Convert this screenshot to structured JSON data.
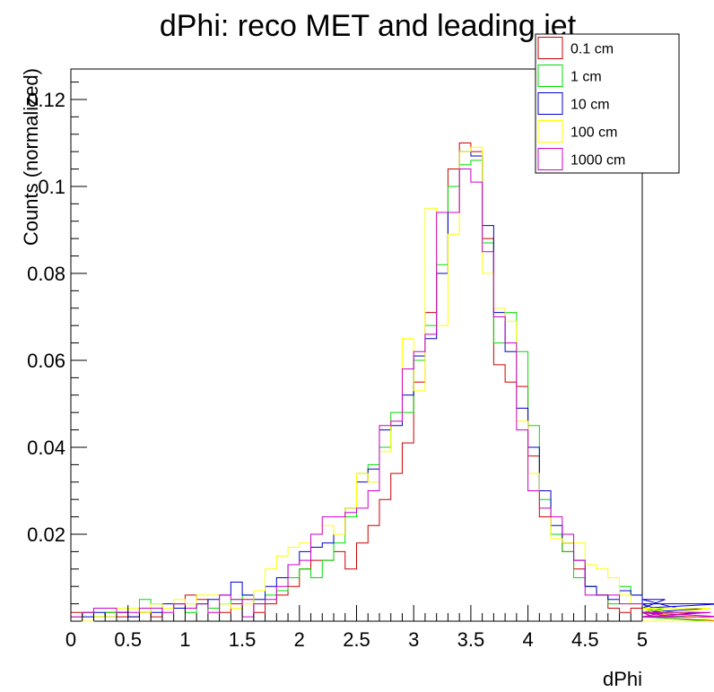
{
  "chart_data": {
    "type": "line",
    "title": "dPhi: reco MET and leading jet",
    "xlabel": "dPhi",
    "ylabel": "Counts (normalized)",
    "xlim": [
      0,
      5
    ],
    "ylim": [
      0,
      0.127
    ],
    "x_ticks": [
      "0",
      "0.5",
      "1",
      "1.5",
      "2",
      "2.5",
      "3",
      "3.5",
      "4",
      "4.5",
      "5"
    ],
    "y_ticks": [
      "0.02",
      "0.04",
      "0.06",
      "0.08",
      "0.1",
      "0.12"
    ],
    "y_tick_values": [
      0.02,
      0.04,
      0.06,
      0.08,
      0.1,
      0.12
    ],
    "bin_edges_start": 0,
    "bin_width": 0.1,
    "legend_position": "top-right",
    "grid": false,
    "series": [
      {
        "name": "0.1 cm",
        "color": "#cc0000",
        "values": [
          0.002,
          0.002,
          0.001,
          0.002,
          0.001,
          0.001,
          0.002,
          0.001,
          0.003,
          0.004,
          0.006,
          0.005,
          0.003,
          0.002,
          0.004,
          0.005,
          0.002,
          0.004,
          0.006,
          0.008,
          0.012,
          0.014,
          0.014,
          0.016,
          0.012,
          0.018,
          0.022,
          0.028,
          0.034,
          0.041,
          0.055,
          0.071,
          0.08,
          0.104,
          0.11,
          0.108,
          0.088,
          0.059,
          0.055,
          0.054,
          0.038,
          0.024,
          0.02,
          0.016,
          0.012,
          0.008,
          0.006,
          0.003,
          0.002,
          0.003,
          0.002,
          0.001,
          0.001,
          0.002,
          0.001,
          0.001,
          0.001,
          0.0
        ]
      },
      {
        "name": "1 cm",
        "color": "#00dd00",
        "values": [
          0.001,
          0.002,
          0.001,
          0.002,
          0.002,
          0.003,
          0.005,
          0.004,
          0.003,
          0.003,
          0.002,
          0.004,
          0.003,
          0.004,
          0.005,
          0.006,
          0.004,
          0.006,
          0.007,
          0.01,
          0.012,
          0.01,
          0.014,
          0.018,
          0.024,
          0.034,
          0.036,
          0.04,
          0.048,
          0.048,
          0.06,
          0.068,
          0.082,
          0.1,
          0.105,
          0.106,
          0.087,
          0.064,
          0.071,
          0.062,
          0.045,
          0.028,
          0.02,
          0.016,
          0.01,
          0.008,
          0.006,
          0.004,
          0.008,
          0.006,
          0.004,
          0.002,
          0.003,
          0.002,
          0.001,
          0.001,
          0.0,
          0.0
        ]
      },
      {
        "name": "10 cm",
        "color": "#0000cc",
        "values": [
          0.001,
          0.001,
          0.002,
          0.001,
          0.002,
          0.001,
          0.003,
          0.002,
          0.004,
          0.003,
          0.003,
          0.004,
          0.005,
          0.006,
          0.009,
          0.006,
          0.005,
          0.008,
          0.01,
          0.013,
          0.016,
          0.017,
          0.018,
          0.02,
          0.026,
          0.032,
          0.035,
          0.044,
          0.045,
          0.052,
          0.061,
          0.065,
          0.08,
          0.094,
          0.108,
          0.107,
          0.091,
          0.071,
          0.062,
          0.049,
          0.04,
          0.03,
          0.022,
          0.018,
          0.014,
          0.008,
          0.006,
          0.005,
          0.007,
          0.006,
          0.004,
          0.003,
          0.005,
          0.003,
          0.001,
          0.002,
          0.003,
          0.004
        ]
      },
      {
        "name": "100 cm",
        "color": "#ffff00",
        "values": [
          0.001,
          0.0,
          0.001,
          0.001,
          0.003,
          0.003,
          0.002,
          0.004,
          0.003,
          0.005,
          0.004,
          0.006,
          0.006,
          0.004,
          0.003,
          0.004,
          0.007,
          0.012,
          0.015,
          0.017,
          0.018,
          0.02,
          0.022,
          0.02,
          0.026,
          0.034,
          0.032,
          0.039,
          0.046,
          0.065,
          0.053,
          0.095,
          0.068,
          0.089,
          0.108,
          0.109,
          0.08,
          0.072,
          0.069,
          0.046,
          0.034,
          0.026,
          0.019,
          0.018,
          0.018,
          0.013,
          0.012,
          0.01,
          0.006,
          0.004,
          0.003,
          0.002,
          0.002,
          0.001,
          0.002,
          0.001,
          0.003,
          0.0
        ]
      },
      {
        "name": "1000 cm",
        "color": "#cc00cc",
        "values": [
          0.001,
          0.002,
          0.003,
          0.003,
          0.002,
          0.002,
          0.003,
          0.003,
          0.002,
          0.004,
          0.003,
          0.004,
          0.002,
          0.006,
          0.005,
          0.001,
          0.004,
          0.005,
          0.008,
          0.013,
          0.014,
          0.02,
          0.024,
          0.024,
          0.025,
          0.026,
          0.03,
          0.045,
          0.046,
          0.058,
          0.062,
          0.066,
          0.094,
          0.094,
          0.104,
          0.101,
          0.085,
          0.07,
          0.064,
          0.044,
          0.03,
          0.026,
          0.024,
          0.02,
          0.014,
          0.006,
          0.006,
          0.006,
          0.004,
          0.004,
          0.002,
          0.001,
          0.002,
          0.001,
          0.001,
          0.001,
          0.002,
          0.001
        ]
      }
    ]
  }
}
